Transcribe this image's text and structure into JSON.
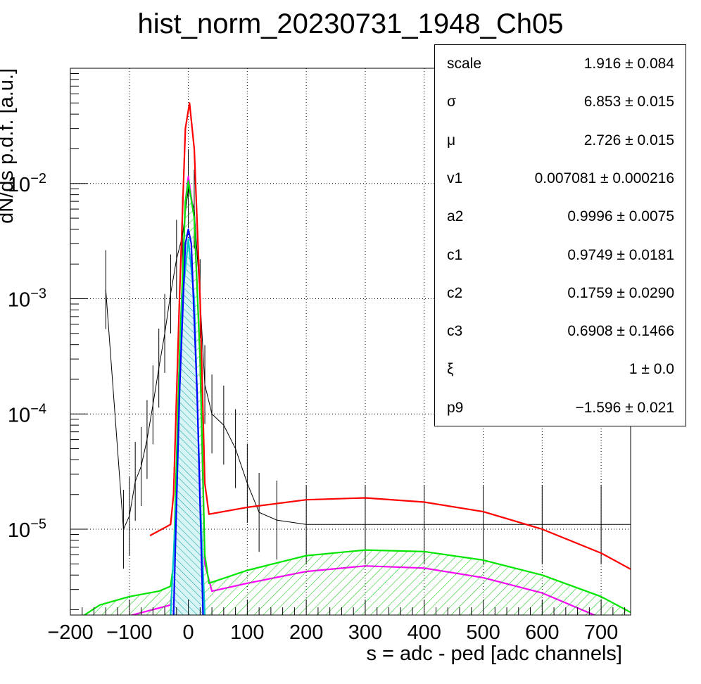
{
  "title": "hist_norm_20230731_1948_Ch05",
  "stats": [
    {
      "name": "scale",
      "value": "1.916 ± 0.084"
    },
    {
      "name": "σ",
      "value": "6.853 ± 0.015"
    },
    {
      "name": "μ",
      "value": "2.726 ± 0.015"
    },
    {
      "name": "v1",
      "value": "0.007081 ± 0.000216"
    },
    {
      "name": "a2",
      "value": "0.9996 ± 0.0075"
    },
    {
      "name": "c1",
      "value": "0.9749 ± 0.0181"
    },
    {
      "name": "c2",
      "value": "0.1759 ± 0.0290"
    },
    {
      "name": "c3",
      "value": "0.6908 ± 0.1466"
    },
    {
      "name": "ξ",
      "value": "1 ± 0.0"
    },
    {
      "name": "p9",
      "value": "−1.596 ± 0.021"
    }
  ],
  "chart_data": {
    "type": "line",
    "xlabel": "s = adc - ped [adc channels]",
    "ylabel": "dN/ds p.d.f. [a.u.]",
    "xlim": [
      -200,
      750
    ],
    "ylim": [
      1.8e-06,
      0.1
    ],
    "yscale": "log",
    "grid": true,
    "x_ticks": [
      -200,
      -100,
      0,
      100,
      200,
      300,
      400,
      500,
      600,
      700
    ],
    "y_ticks": [
      {
        "value": 1e-05,
        "label": "10",
        "exp": "−5"
      },
      {
        "value": 0.0001,
        "label": "10",
        "exp": "−4"
      },
      {
        "value": 0.001,
        "label": "10",
        "exp": "−3"
      },
      {
        "value": 0.01,
        "label": "10",
        "exp": "−2"
      }
    ],
    "series": [
      {
        "color": "#000000",
        "style": "histogram",
        "points": [
          [
            -140,
            0.0012
          ],
          [
            -110,
            1e-05
          ],
          [
            -100,
            1.3e-05
          ],
          [
            -90,
            2.6e-05
          ],
          [
            -80,
            3.5e-05
          ],
          [
            -70,
            6e-05
          ],
          [
            -60,
            0.00012
          ],
          [
            -50,
            0.00025
          ],
          [
            -40,
            0.0005
          ],
          [
            -30,
            0.0011
          ],
          [
            -20,
            0.0022
          ],
          [
            -10,
            0.0035
          ],
          [
            0,
            0.009
          ],
          [
            10,
            0.006
          ],
          [
            20,
            0.001
          ],
          [
            28,
            0.00018
          ],
          [
            40,
            0.0001
          ],
          [
            60,
            8e-05
          ],
          [
            80,
            5e-05
          ],
          [
            100,
            2.5e-05
          ],
          [
            120,
            1.4e-05
          ],
          [
            150,
            1.2e-05
          ],
          [
            200,
            1.1e-05
          ],
          [
            300,
            1.1e-05
          ],
          [
            400,
            1.1e-05
          ],
          [
            500,
            1.1e-05
          ],
          [
            600,
            1.1e-05
          ],
          [
            700,
            1.1e-05
          ],
          [
            750,
            1.1e-05
          ]
        ]
      },
      {
        "color": "#ff0000",
        "style": "line",
        "points": [
          [
            -65,
            8.8e-06
          ],
          [
            -30,
            1.1e-05
          ],
          [
            -25,
            2e-05
          ],
          [
            -15,
            0.001
          ],
          [
            -5,
            0.03
          ],
          [
            2,
            0.05
          ],
          [
            10,
            0.02
          ],
          [
            20,
            0.001
          ],
          [
            28,
            2.5e-05
          ],
          [
            35,
            1.35e-05
          ],
          [
            100,
            1.55e-05
          ],
          [
            200,
            1.8e-05
          ],
          [
            300,
            1.87e-05
          ],
          [
            400,
            1.72e-05
          ],
          [
            500,
            1.42e-05
          ],
          [
            600,
            1e-05
          ],
          [
            700,
            6.2e-06
          ],
          [
            750,
            4.5e-06
          ]
        ]
      },
      {
        "color": "#ff00ff",
        "style": "line",
        "points": [
          [
            -200,
            1.3e-06
          ],
          [
            -30,
            2.2e-06
          ],
          [
            -25,
            4e-06
          ],
          [
            -15,
            0.0003
          ],
          [
            -5,
            0.007
          ],
          [
            0,
            0.0115
          ],
          [
            10,
            0.005
          ],
          [
            20,
            0.0003
          ],
          [
            28,
            5e-06
          ],
          [
            40,
            2.9e-06
          ],
          [
            100,
            3.4e-06
          ],
          [
            200,
            4.3e-06
          ],
          [
            300,
            4.8e-06
          ],
          [
            400,
            4.6e-06
          ],
          [
            500,
            3.8e-06
          ],
          [
            600,
            2.8e-06
          ],
          [
            700,
            1.7e-06
          ]
        ]
      },
      {
        "color": "#00e600",
        "style": "filled",
        "points": [
          [
            -200,
            1.5e-06
          ],
          [
            -150,
            2.2e-06
          ],
          [
            -100,
            2.6e-06
          ],
          [
            -50,
            2.9e-06
          ],
          [
            -30,
            3.2e-06
          ],
          [
            -25,
            5e-06
          ],
          [
            -15,
            0.0003
          ],
          [
            -5,
            0.007
          ],
          [
            0,
            0.0105
          ],
          [
            10,
            0.005
          ],
          [
            20,
            0.0003
          ],
          [
            28,
            6e-06
          ],
          [
            35,
            3.4e-06
          ],
          [
            100,
            4.4e-06
          ],
          [
            200,
            5.9e-06
          ],
          [
            300,
            6.6e-06
          ],
          [
            400,
            6.4e-06
          ],
          [
            500,
            5.4e-06
          ],
          [
            600,
            4e-06
          ],
          [
            700,
            2.6e-06
          ],
          [
            750,
            1.9e-06
          ]
        ]
      },
      {
        "color": "#00c8c8",
        "style": "filled",
        "points": [
          [
            -30,
            1.8e-06
          ],
          [
            -20,
            2e-05
          ],
          [
            -10,
            0.001
          ],
          [
            0,
            0.0033
          ],
          [
            10,
            0.001
          ],
          [
            20,
            2e-05
          ],
          [
            28,
            1.8e-06
          ]
        ]
      },
      {
        "color": "#0000ff",
        "style": "line",
        "points": [
          [
            -25,
            1.8e-06
          ],
          [
            -15,
            0.00015
          ],
          [
            -5,
            0.003
          ],
          [
            0,
            0.004
          ],
          [
            5,
            0.003
          ],
          [
            15,
            0.00015
          ],
          [
            25,
            1.8e-06
          ]
        ]
      }
    ]
  }
}
